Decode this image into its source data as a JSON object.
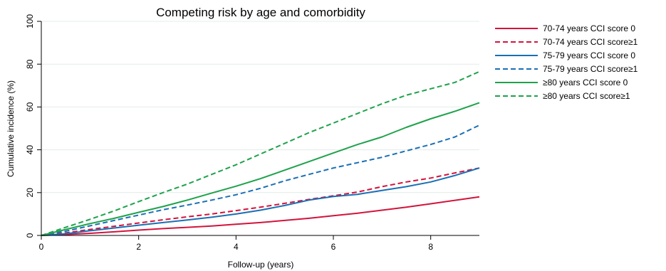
{
  "chart_data": {
    "type": "line",
    "title": "Competing risk by age and comorbidity",
    "xlabel": "Follow-up (years)",
    "ylabel": "Cumulative incidence (%)",
    "xlim": [
      0,
      9
    ],
    "ylim": [
      0,
      100
    ],
    "xticks": [
      0,
      2,
      4,
      6,
      8
    ],
    "yticks": [
      0,
      20,
      40,
      60,
      80,
      100
    ],
    "grid": true,
    "legend_position": "right",
    "series": [
      {
        "name": "70-74 years CCI score 0",
        "color": "#d2143c",
        "dash": "solid",
        "points": [
          [
            0,
            0
          ],
          [
            0.5,
            0.4
          ],
          [
            1,
            1.0
          ],
          [
            1.5,
            1.7
          ],
          [
            2,
            2.5
          ],
          [
            2.5,
            3.2
          ],
          [
            3,
            3.8
          ],
          [
            3.5,
            4.4
          ],
          [
            4,
            5.2
          ],
          [
            4.5,
            6.0
          ],
          [
            5,
            7.0
          ],
          [
            5.5,
            8.0
          ],
          [
            6,
            9.2
          ],
          [
            6.5,
            10.4
          ],
          [
            7,
            11.8
          ],
          [
            7.5,
            13.2
          ],
          [
            8,
            14.8
          ],
          [
            8.5,
            16.4
          ],
          [
            9,
            18.0
          ]
        ]
      },
      {
        "name": "70-74 years CCI score≥1",
        "color": "#d2143c",
        "dash": "dashed",
        "points": [
          [
            0,
            0
          ],
          [
            0.5,
            1.2
          ],
          [
            1,
            2.8
          ],
          [
            1.5,
            4.3
          ],
          [
            2,
            5.8
          ],
          [
            2.5,
            7.3
          ],
          [
            3,
            8.7
          ],
          [
            3.5,
            10.0
          ],
          [
            4,
            11.6
          ],
          [
            4.5,
            13.2
          ],
          [
            5,
            15.0
          ],
          [
            5.5,
            16.8
          ],
          [
            6,
            18.5
          ],
          [
            6.5,
            20.3
          ],
          [
            7,
            22.8
          ],
          [
            7.5,
            25.0
          ],
          [
            8,
            26.8
          ],
          [
            8.5,
            29.2
          ],
          [
            9,
            31.5
          ]
        ]
      },
      {
        "name": "75-79 years CCI score 0",
        "color": "#1a6fb5",
        "dash": "solid",
        "points": [
          [
            0,
            0
          ],
          [
            0.5,
            0.8
          ],
          [
            1,
            2.2
          ],
          [
            1.5,
            3.5
          ],
          [
            2,
            4.8
          ],
          [
            2.5,
            6.0
          ],
          [
            3,
            7.2
          ],
          [
            3.5,
            8.5
          ],
          [
            4,
            10.0
          ],
          [
            4.5,
            11.8
          ],
          [
            5,
            14.0
          ],
          [
            5.5,
            16.5
          ],
          [
            6,
            18.2
          ],
          [
            6.5,
            19.2
          ],
          [
            7,
            21.0
          ],
          [
            7.5,
            22.8
          ],
          [
            8,
            25.0
          ],
          [
            8.5,
            28.0
          ],
          [
            9,
            31.5
          ]
        ]
      },
      {
        "name": "75-79 years CCI score≥1",
        "color": "#1a6fb5",
        "dash": "dashed",
        "points": [
          [
            0,
            0
          ],
          [
            0.5,
            2.0
          ],
          [
            1,
            4.5
          ],
          [
            1.5,
            7.0
          ],
          [
            2,
            9.5
          ],
          [
            2.5,
            12.0
          ],
          [
            3,
            14.2
          ],
          [
            3.5,
            16.5
          ],
          [
            4,
            19.0
          ],
          [
            4.5,
            22.0
          ],
          [
            5,
            25.5
          ],
          [
            5.5,
            28.5
          ],
          [
            6,
            31.5
          ],
          [
            6.5,
            34.0
          ],
          [
            7,
            36.5
          ],
          [
            7.5,
            39.5
          ],
          [
            8,
            42.5
          ],
          [
            8.5,
            46.0
          ],
          [
            9,
            51.5
          ]
        ]
      },
      {
        "name": "≥80 years CCI score 0",
        "color": "#1ea24b",
        "dash": "solid",
        "points": [
          [
            0,
            0
          ],
          [
            0.5,
            2.8
          ],
          [
            1,
            5.5
          ],
          [
            1.5,
            8.0
          ],
          [
            2,
            10.8
          ],
          [
            2.5,
            13.5
          ],
          [
            3,
            16.5
          ],
          [
            3.5,
            19.8
          ],
          [
            4,
            23.0
          ],
          [
            4.5,
            26.5
          ],
          [
            5,
            30.5
          ],
          [
            5.5,
            34.5
          ],
          [
            6,
            38.5
          ],
          [
            6.5,
            42.5
          ],
          [
            7,
            46.0
          ],
          [
            7.5,
            50.5
          ],
          [
            8,
            54.5
          ],
          [
            8.5,
            58.0
          ],
          [
            9,
            62.0
          ]
        ]
      },
      {
        "name": "≥80 years CCI score≥1",
        "color": "#1ea24b",
        "dash": "dashed",
        "points": [
          [
            0,
            0
          ],
          [
            0.5,
            3.8
          ],
          [
            1,
            7.5
          ],
          [
            1.5,
            11.5
          ],
          [
            2,
            15.8
          ],
          [
            2.5,
            20.0
          ],
          [
            3,
            24.0
          ],
          [
            3.5,
            28.5
          ],
          [
            4,
            33.0
          ],
          [
            4.5,
            38.0
          ],
          [
            5,
            43.0
          ],
          [
            5.5,
            48.0
          ],
          [
            6,
            52.5
          ],
          [
            6.5,
            57.0
          ],
          [
            7,
            61.5
          ],
          [
            7.5,
            65.5
          ],
          [
            8,
            68.5
          ],
          [
            8.5,
            71.5
          ],
          [
            9,
            76.5
          ]
        ]
      }
    ]
  }
}
